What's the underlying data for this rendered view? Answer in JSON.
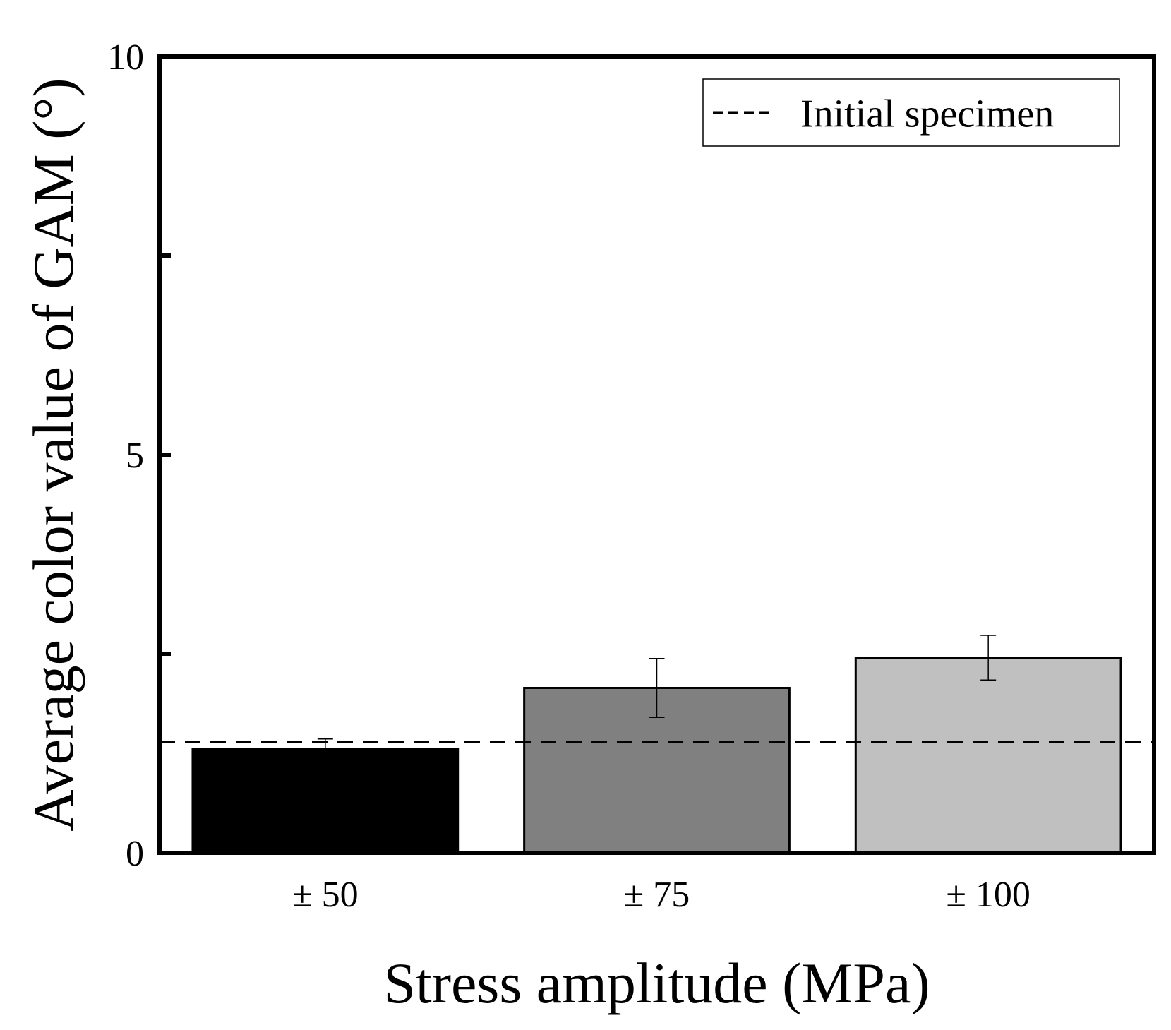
{
  "chart_data": {
    "type": "bar",
    "title": "",
    "xlabel": "Stress amplitude (MPa)",
    "ylabel": "Average color value of GAM (°)",
    "categories": [
      "± 50",
      "± 75",
      "± 100"
    ],
    "values": [
      1.3,
      2.07,
      2.45
    ],
    "errors": [
      0.13,
      0.37,
      0.28
    ],
    "bar_colors": [
      "#000000",
      "#808080",
      "#c0c0c0"
    ],
    "ylim": [
      0,
      10
    ],
    "yticks": [
      0,
      2.5,
      5,
      7.5,
      10
    ],
    "ytick_labels": [
      "0",
      "",
      "5",
      "",
      "10"
    ],
    "reference_line": {
      "value": 1.39,
      "label": "Initial specimen",
      "style": "dashed"
    },
    "legend_position": "top-right",
    "grid": false
  }
}
